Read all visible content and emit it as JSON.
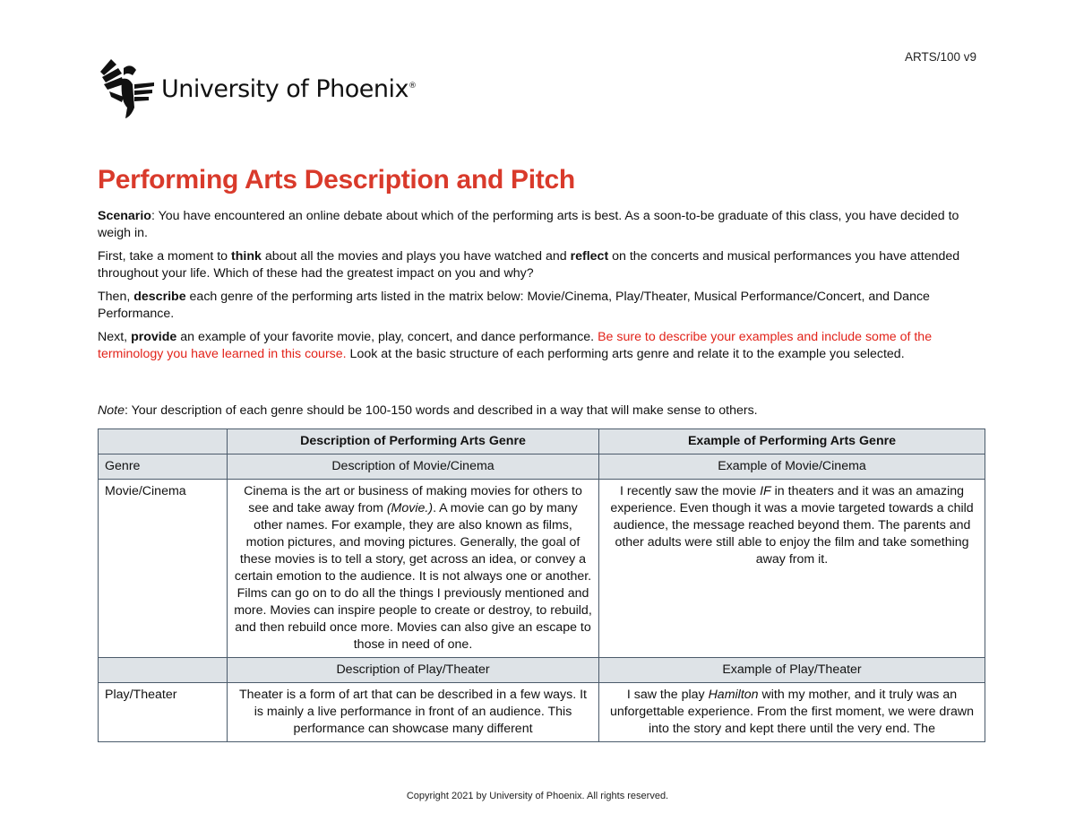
{
  "header": {
    "version": "ARTS/100 v9",
    "logo_text": "University of Phoenix",
    "logo_mark": "®"
  },
  "title": "Performing Arts Description and Pitch",
  "paragraphs": {
    "p1_label": "Scenario",
    "p1_text": ": You have encountered an online debate about which of the performing arts is best. As a soon-to-be graduate of this class, you have decided to weigh in.",
    "p2_a": "First, take a moment to ",
    "p2_b": "think",
    "p2_c": " about all the movies and plays you have watched and ",
    "p2_d": "reflect",
    "p2_e": " on the concerts and musical performances you have attended throughout your life. Which of these had the greatest impact on you and why?",
    "p3_a": "Then, ",
    "p3_b": "describe",
    "p3_c": " each genre of the performing arts listed in the matrix below: Movie/Cinema, Play/Theater, Musical Performance/Concert, and Dance Performance.",
    "p4_a": "Next, ",
    "p4_b": "provide",
    "p4_c": " an example of your favorite movie, play, concert, and dance performance. ",
    "p4_red": "Be sure to describe your examples and include some of the terminology you have learned in this course.",
    "p4_d": "  Look at the basic structure of each performing arts genre and relate it to the example you selected.",
    "note_label": "Note",
    "note_text": ": Your description of each genre should be 100-150 words and described in a way that will make sense to others."
  },
  "table": {
    "headers": [
      "",
      "Description of Performing Arts Genre",
      "Example of Performing Arts Genre"
    ],
    "rows": [
      {
        "c1": "Genre",
        "c2": "Description of Movie/Cinema",
        "c3": "Example of Movie/Cinema"
      },
      {
        "c1": "Movie/Cinema",
        "c2a": "Cinema is the art or business of making movies for others to see and take away from ",
        "c2i": "(Movie.)",
        "c2b": ". A movie can go by many other names. For example, they are also known as films, motion pictures, and moving pictures. Generally, the goal of these movies is to tell a story, get across an idea, or convey a certain emotion to the audience. It is not always one or another. Films can go on to do all the things I previously mentioned and more. Movies can inspire people to create or destroy, to rebuild, and then rebuild once more. Movies can also give an escape to those in need of one.",
        "c3a": "I recently saw the movie ",
        "c3i": "IF",
        "c3b": " in theaters and it was an amazing experience. Even though it was a movie targeted towards a child audience, the message reached beyond them. The parents and other adults were still able to enjoy the film and take something away from it."
      },
      {
        "c1": "",
        "c2": "Description of Play/Theater",
        "c3": "Example of Play/Theater"
      },
      {
        "c1": "Play/Theater",
        "c2": "Theater is a form of art that can be described in a few ways. It is mainly a live performance in front of an audience. This performance can showcase many different",
        "c3a": "I saw the play ",
        "c3i": "Hamilton",
        "c3b": " with my mother, and it truly was an unforgettable experience. From the first moment, we were drawn into the story and kept there until the very end. The"
      }
    ]
  },
  "footer": "Copyright 2021 by University of Phoenix. All rights reserved."
}
